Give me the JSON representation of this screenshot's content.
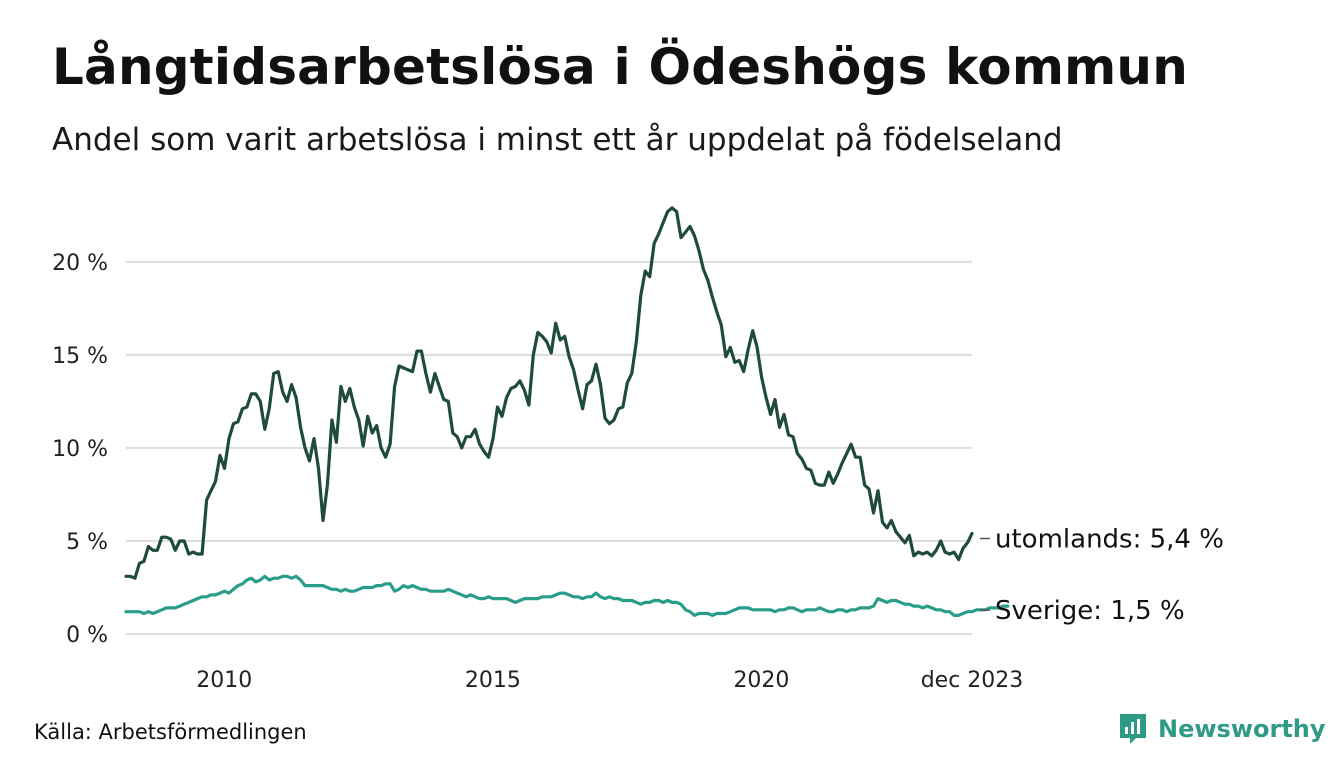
{
  "title": "Långtidsarbetslösa i Ödeshögs kommun",
  "subtitle": "Andel som varit arbetslösa i minst ett år uppdelat på födelseland",
  "source": "Källa: Arbetsförmedlingen",
  "brand": {
    "name": "Newsworthy",
    "icon": "newsworthy-logo-icon"
  },
  "colors": {
    "utomlands": "#1f4a3e",
    "sverige": "#2a9d8a",
    "grid": "#dddddd",
    "brand": "#2f9a86"
  },
  "chart_data": {
    "type": "line",
    "title": "Långtidsarbetslösa i Ödeshögs kommun",
    "xlabel": "",
    "ylabel": "",
    "x_start": 2008.17,
    "x_step": 0.0833333,
    "xlim": [
      2008.17,
      2023.92
    ],
    "ylim": [
      0,
      23
    ],
    "y_ticks": [
      {
        "value": 0,
        "label": "0 %"
      },
      {
        "value": 5,
        "label": "5 %"
      },
      {
        "value": 10,
        "label": "10 %"
      },
      {
        "value": 15,
        "label": "15 %"
      },
      {
        "value": 20,
        "label": "20 %"
      }
    ],
    "x_ticks": [
      {
        "value": 2010,
        "label": "2010"
      },
      {
        "value": 2015,
        "label": "2015"
      },
      {
        "value": 2020,
        "label": "2020"
      },
      {
        "value": 2023.92,
        "label": "dec 2023"
      }
    ],
    "series": [
      {
        "name": "utomlands",
        "end_label": "utomlands: 5,4 %",
        "values": [
          3.1,
          3.1,
          3.0,
          3.8,
          3.9,
          4.7,
          4.5,
          4.5,
          5.2,
          5.2,
          5.1,
          4.5,
          5.0,
          5.0,
          4.3,
          4.4,
          4.3,
          4.3,
          7.2,
          7.7,
          8.2,
          9.6,
          8.9,
          10.5,
          11.3,
          11.4,
          12.1,
          12.2,
          12.9,
          12.9,
          12.5,
          11.0,
          12.1,
          14.0,
          14.1,
          13.0,
          12.5,
          13.4,
          12.7,
          11.1,
          10.0,
          9.3,
          10.5,
          8.9,
          6.1,
          8.0,
          11.5,
          10.3,
          13.3,
          12.5,
          13.2,
          12.2,
          11.5,
          10.1,
          11.7,
          10.8,
          11.2,
          10.0,
          9.5,
          10.2,
          13.3,
          14.4,
          14.3,
          14.2,
          14.1,
          15.2,
          15.2,
          14.0,
          13.0,
          14.0,
          13.3,
          12.6,
          12.5,
          10.8,
          10.6,
          10.0,
          10.6,
          10.6,
          11.0,
          10.2,
          9.8,
          9.5,
          10.5,
          12.2,
          11.7,
          12.7,
          13.2,
          13.3,
          13.6,
          13.1,
          12.3,
          15.0,
          16.2,
          16.0,
          15.7,
          15.1,
          16.7,
          15.8,
          16.0,
          14.9,
          14.2,
          13.1,
          12.1,
          13.4,
          13.6,
          14.5,
          13.4,
          11.6,
          11.3,
          11.5,
          12.1,
          12.2,
          13.5,
          14.0,
          15.7,
          18.2,
          19.5,
          19.2,
          21.0,
          21.5,
          22.1,
          22.7,
          22.9,
          22.7,
          21.3,
          21.6,
          21.9,
          21.4,
          20.6,
          19.6,
          19.0,
          18.1,
          17.3,
          16.6,
          14.9,
          15.4,
          14.6,
          14.7,
          14.1,
          15.3,
          16.3,
          15.4,
          13.8,
          12.7,
          11.8,
          12.6,
          11.1,
          11.8,
          10.7,
          10.6,
          9.7,
          9.4,
          8.9,
          8.8,
          8.1,
          8.0,
          8.0,
          8.7,
          8.1,
          8.6,
          9.2,
          9.7,
          10.2,
          9.5,
          9.5,
          8.0,
          7.8,
          6.5,
          7.7,
          6.0,
          5.7,
          6.1,
          5.5,
          5.2,
          4.9,
          5.3,
          4.2,
          4.4,
          4.3,
          4.4,
          4.2,
          4.5,
          5.0,
          4.4,
          4.3,
          4.4,
          4.0,
          4.6,
          4.9,
          5.4
        ]
      },
      {
        "name": "Sverige",
        "end_label": "Sverige: 1,5 %",
        "values": [
          1.2,
          1.2,
          1.2,
          1.2,
          1.1,
          1.2,
          1.1,
          1.2,
          1.3,
          1.4,
          1.4,
          1.4,
          1.5,
          1.6,
          1.7,
          1.8,
          1.9,
          2.0,
          2.0,
          2.1,
          2.1,
          2.2,
          2.3,
          2.2,
          2.4,
          2.6,
          2.7,
          2.9,
          3.0,
          2.8,
          2.9,
          3.1,
          2.9,
          3.0,
          3.0,
          3.1,
          3.1,
          3.0,
          3.1,
          2.9,
          2.6,
          2.6,
          2.6,
          2.6,
          2.6,
          2.5,
          2.4,
          2.4,
          2.3,
          2.4,
          2.3,
          2.3,
          2.4,
          2.5,
          2.5,
          2.5,
          2.6,
          2.6,
          2.7,
          2.7,
          2.3,
          2.4,
          2.6,
          2.5,
          2.6,
          2.5,
          2.4,
          2.4,
          2.3,
          2.3,
          2.3,
          2.3,
          2.4,
          2.3,
          2.2,
          2.1,
          2.0,
          2.1,
          2.0,
          1.9,
          1.9,
          2.0,
          1.9,
          1.9,
          1.9,
          1.9,
          1.8,
          1.7,
          1.8,
          1.9,
          1.9,
          1.9,
          1.9,
          2.0,
          2.0,
          2.0,
          2.1,
          2.2,
          2.2,
          2.1,
          2.0,
          2.0,
          1.9,
          2.0,
          2.0,
          2.2,
          2.0,
          1.9,
          2.0,
          1.9,
          1.9,
          1.8,
          1.8,
          1.8,
          1.7,
          1.6,
          1.7,
          1.7,
          1.8,
          1.8,
          1.7,
          1.8,
          1.7,
          1.7,
          1.6,
          1.3,
          1.2,
          1.0,
          1.1,
          1.1,
          1.1,
          1.0,
          1.1,
          1.1,
          1.1,
          1.2,
          1.3,
          1.4,
          1.4,
          1.4,
          1.3,
          1.3,
          1.3,
          1.3,
          1.3,
          1.2,
          1.3,
          1.3,
          1.4,
          1.4,
          1.3,
          1.2,
          1.3,
          1.3,
          1.3,
          1.4,
          1.3,
          1.2,
          1.2,
          1.3,
          1.3,
          1.2,
          1.3,
          1.3,
          1.4,
          1.4,
          1.4,
          1.5,
          1.9,
          1.8,
          1.7,
          1.8,
          1.8,
          1.7,
          1.6,
          1.6,
          1.5,
          1.5,
          1.4,
          1.5,
          1.4,
          1.3,
          1.3,
          1.2,
          1.2,
          1.0,
          1.0,
          1.1,
          1.2,
          1.2,
          1.3,
          1.3,
          1.3,
          1.4,
          1.4,
          1.4,
          1.5,
          1.5
        ]
      }
    ]
  }
}
